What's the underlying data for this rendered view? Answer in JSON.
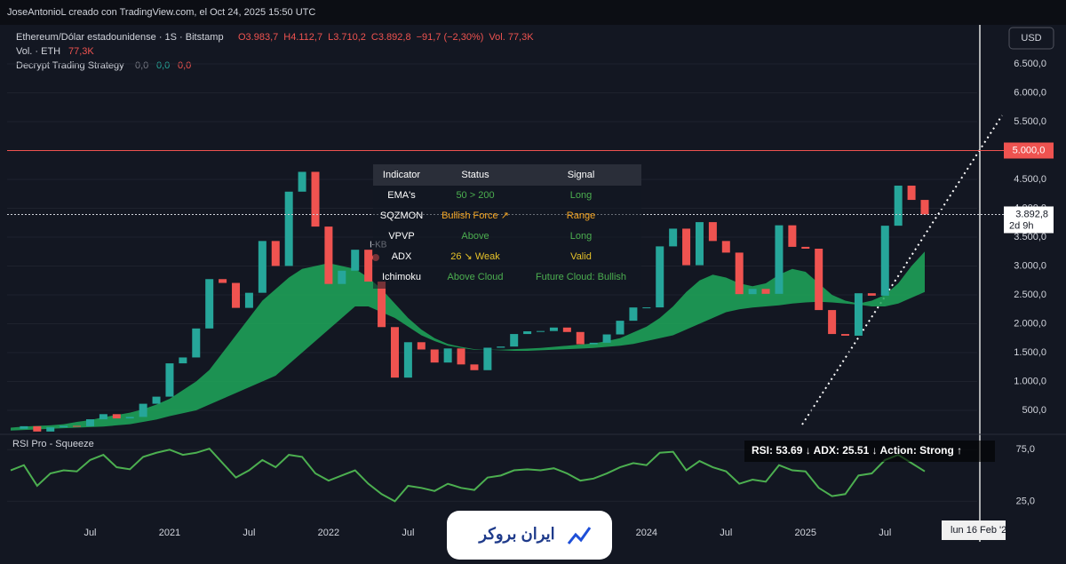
{
  "header": {
    "caption": "JoseAntonioL creado con TradingView.com, el Oct 24, 2025 15:50 UTC"
  },
  "legend": {
    "symbol": "Ethereum/Dólar estadounidense · 1S · Bitstamp",
    "open": "O3.983,7",
    "high": "H4.112,7",
    "low": "L3.710,2",
    "close": "C3.892,8",
    "change": "−91,7 (−2,30%)",
    "volume": "Vol. 77,3K",
    "vol_name": "Vol. · ETH",
    "vol_value": "77,3K",
    "strategy": "Decrypt Trading Strategy",
    "strategy_values": [
      "0,0",
      "0,0",
      "0,0"
    ]
  },
  "indicator_table": {
    "columns": [
      "Indicator",
      "Status",
      "Signal"
    ],
    "rows": [
      [
        "EMA's",
        "50 > 200",
        "Long"
      ],
      [
        "SQZMON",
        "Bullish Force ↗",
        "Range"
      ],
      [
        "VPVP",
        "Above",
        "Long"
      ],
      [
        "ADX",
        "26 ↘ Weak",
        "Valid"
      ],
      [
        "Ichimoku",
        "Above Cloud",
        "Future Cloud: Bullish"
      ]
    ]
  },
  "currency_button": "USD",
  "marker_label": "I-KB",
  "date_tag": "lun 16 Feb '2",
  "brand": "ایران بروکر",
  "chart_data": [
    {
      "type": "candlestick",
      "x": [
        "2020-01",
        "2020-02",
        "2020-03",
        "2020-04",
        "2020-05",
        "2020-06",
        "2020-07",
        "2020-08",
        "2020-09",
        "2020-10",
        "2020-11",
        "2020-12",
        "2021-01",
        "2021-02",
        "2021-03",
        "2021-04",
        "2021-05",
        "2021-06",
        "2021-07",
        "2021-08",
        "2021-09",
        "2021-10",
        "2021-11",
        "2021-12",
        "2022-01",
        "2022-02",
        "2022-03",
        "2022-04",
        "2022-05",
        "2022-06",
        "2022-07",
        "2022-08",
        "2022-09",
        "2022-10",
        "2022-11",
        "2022-12",
        "2023-01",
        "2023-02",
        "2023-03",
        "2023-04",
        "2023-05",
        "2023-06",
        "2023-07",
        "2023-08",
        "2023-09",
        "2023-10",
        "2023-11",
        "2023-12",
        "2024-01",
        "2024-02",
        "2024-03",
        "2024-04",
        "2024-05",
        "2024-06",
        "2024-07",
        "2024-08",
        "2024-09",
        "2024-10",
        "2024-11",
        "2024-12",
        "2025-01",
        "2025-02",
        "2025-03",
        "2025-04",
        "2025-05",
        "2025-06",
        "2025-07",
        "2025-08",
        "2025-09",
        "2025-10"
      ],
      "values": [
        180,
        225,
        133,
        206,
        231,
        225,
        345,
        434,
        360,
        386,
        614,
        737,
        1314,
        1416,
        1918,
        2773,
        2707,
        2275,
        2536,
        3433,
        3001,
        4288,
        4631,
        3683,
        2689,
        2919,
        3282,
        2730,
        1942,
        1067,
        1680,
        1554,
        1328,
        1572,
        1295,
        1196,
        1585,
        1605,
        1822,
        1869,
        1874,
        1934,
        1857,
        1645,
        1671,
        1815,
        2052,
        2282,
        2283,
        3340,
        3647,
        3014,
        3760,
        3433,
        3232,
        2513,
        2603,
        2518,
        3705,
        3332,
        3300,
        2237,
        1822,
        1793,
        2528,
        2486,
        3698,
        4392,
        4145,
        3892.8
      ],
      "cloud_top": [
        200,
        220,
        230,
        240,
        260,
        300,
        330,
        380,
        420,
        460,
        520,
        600,
        700,
        850,
        1000,
        1200,
        1500,
        1800,
        2100,
        2400,
        2600,
        2800,
        2950,
        3000,
        3050,
        3000,
        2950,
        2800,
        2600,
        2350,
        2100,
        1900,
        1750,
        1650,
        1600,
        1560,
        1550,
        1550,
        1560,
        1570,
        1580,
        1600,
        1620,
        1640,
        1660,
        1700,
        1750,
        1850,
        1950,
        2100,
        2300,
        2550,
        2750,
        2850,
        2800,
        2700,
        2650,
        2700,
        2850,
        2950,
        2900,
        2700,
        2500,
        2400,
        2350,
        2400,
        2500,
        2700,
        3000,
        3250
      ],
      "cloud_bottom": [
        150,
        160,
        170,
        180,
        190,
        200,
        210,
        220,
        240,
        260,
        300,
        340,
        400,
        450,
        500,
        600,
        700,
        800,
        900,
        1000,
        1100,
        1300,
        1500,
        1700,
        1900,
        2100,
        2300,
        2300,
        2200,
        2100,
        1950,
        1800,
        1700,
        1620,
        1580,
        1550,
        1550,
        1540,
        1530,
        1530,
        1540,
        1550,
        1560,
        1570,
        1580,
        1600,
        1620,
        1650,
        1700,
        1750,
        1800,
        1900,
        2000,
        2100,
        2200,
        2250,
        2280,
        2300,
        2320,
        2350,
        2370,
        2380,
        2370,
        2350,
        2330,
        2300,
        2300,
        2350,
        2450,
        2550
      ],
      "up_color": "#26a69a",
      "down_color": "#ef5350",
      "cloud_color": "#1fa85a",
      "ylim": [
        100,
        7146
      ],
      "yticks": [
        {
          "value": 500,
          "label": "500,0"
        },
        {
          "value": 1000,
          "label": "1.000,0"
        },
        {
          "value": 1500,
          "label": "1.500,0"
        },
        {
          "value": 2000,
          "label": "2.000,0"
        },
        {
          "value": 2500,
          "label": "2.500,0"
        },
        {
          "value": 3000,
          "label": "3.000,0"
        },
        {
          "value": 3500,
          "label": "3.500,0"
        },
        {
          "value": 4000,
          "label": "4.000,0"
        },
        {
          "value": 4500,
          "label": "4.500,0"
        },
        {
          "value": 5000,
          "label": "5.000,0"
        },
        {
          "value": 5500,
          "label": "5.500,0"
        },
        {
          "value": 6000,
          "label": "6.000,0"
        },
        {
          "value": 6500,
          "label": "6.500,0"
        }
      ],
      "xticks": [
        {
          "value": "2020-07",
          "label": "Jul"
        },
        {
          "value": "2021-01",
          "label": "2021"
        },
        {
          "value": "2021-07",
          "label": "Jul"
        },
        {
          "value": "2022-01",
          "label": "2022"
        },
        {
          "value": "2022-07",
          "label": "Jul"
        },
        {
          "value": "2024-01",
          "label": "2024"
        },
        {
          "value": "2024-07",
          "label": "Jul"
        },
        {
          "value": "2025-01",
          "label": "2025"
        },
        {
          "value": "2025-07",
          "label": "Jul"
        }
      ],
      "level": {
        "value": 5000,
        "label": "5.000,0"
      },
      "price_line": {
        "value": 3892.8,
        "label": "3.892,8"
      },
      "countdown": "2d 9h"
    },
    {
      "type": "line",
      "title": "RSI Pro - Squeeze",
      "color": "#4caf50",
      "values": [
        55,
        60,
        40,
        52,
        55,
        54,
        65,
        70,
        58,
        56,
        68,
        72,
        75,
        70,
        72,
        76,
        62,
        48,
        55,
        65,
        58,
        70,
        68,
        52,
        45,
        50,
        55,
        42,
        32,
        25,
        40,
        38,
        35,
        42,
        38,
        36,
        48,
        50,
        55,
        56,
        55,
        57,
        52,
        45,
        47,
        52,
        58,
        62,
        60,
        72,
        73,
        55,
        64,
        58,
        54,
        42,
        46,
        44,
        60,
        55,
        54,
        38,
        30,
        32,
        50,
        52,
        65,
        70,
        62,
        54
      ],
      "ylim": [
        3,
        89
      ],
      "yticks": [
        {
          "value": 75,
          "label": "75,0"
        },
        {
          "value": 25,
          "label": "25,0"
        }
      ],
      "readout": "RSI: 53.69 ↓  ADX: 25.51 ↓  Action: Strong ↑"
    }
  ]
}
